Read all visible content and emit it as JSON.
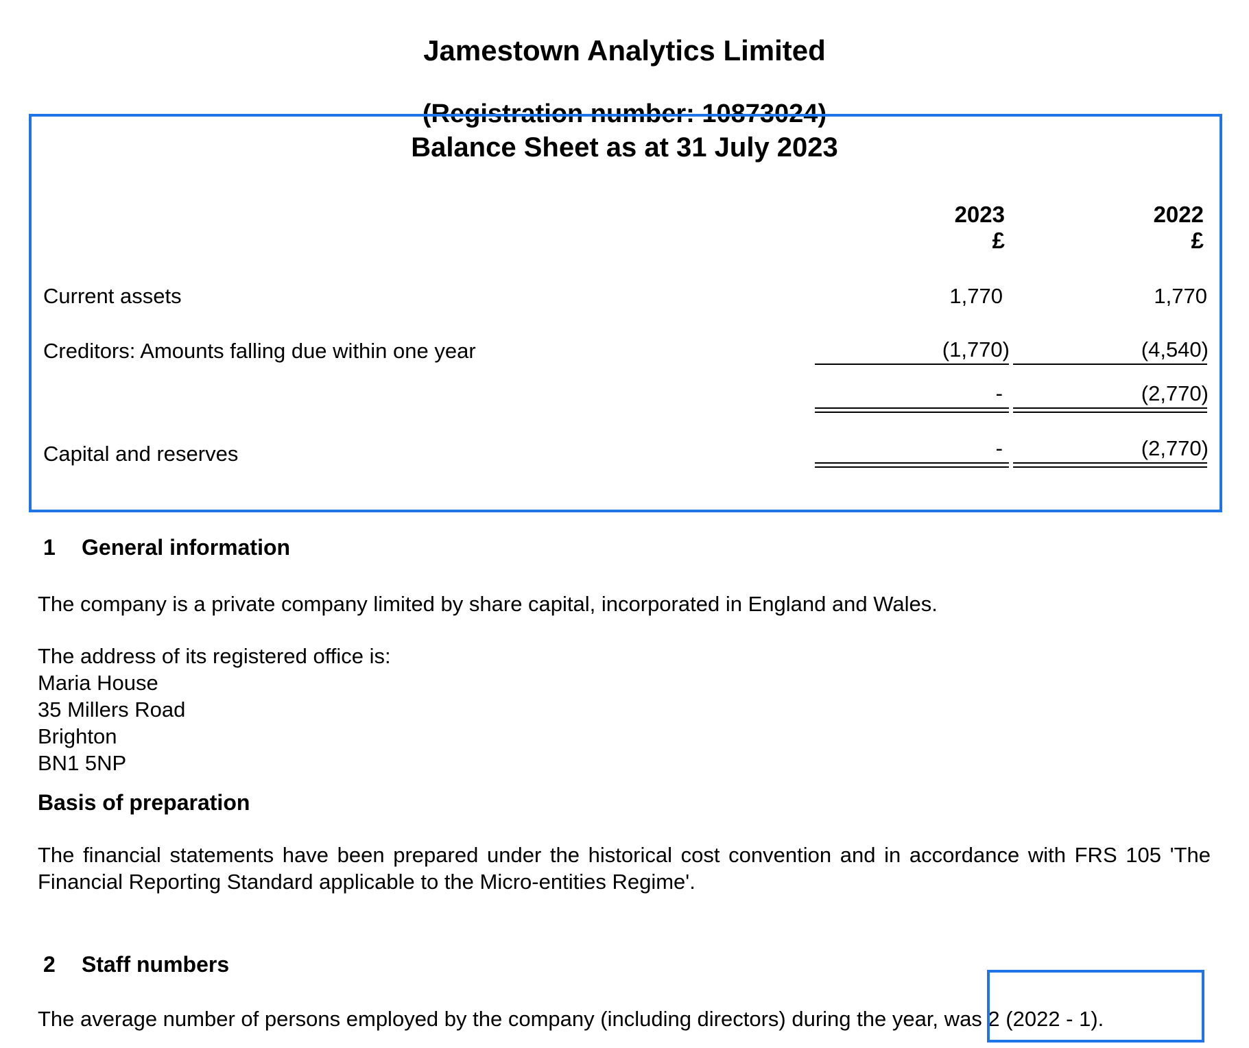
{
  "header": {
    "company": "Jamestown Analytics Limited",
    "registration": "(Registration number: 10873024)",
    "balance_sheet_title": "Balance Sheet as at 31 July 2023"
  },
  "balance_sheet": {
    "columns": [
      {
        "year": "2023",
        "currency": "£"
      },
      {
        "year": "2022",
        "currency": "£"
      }
    ],
    "rows": [
      {
        "label": "Current assets",
        "y2023": "1,770",
        "y2022": "1,770"
      },
      {
        "label": "Creditors: Amounts falling due within one year",
        "y2023": "(1,770)",
        "y2022": "(4,540)"
      },
      {
        "label": "",
        "y2023": "-",
        "y2022": "(2,770)"
      },
      {
        "label": "Capital and reserves",
        "y2023": "-",
        "y2022": "(2,770)"
      }
    ]
  },
  "section1": {
    "number": "1",
    "title": "General information",
    "intro": "The company is a private company limited by share capital, incorporated in England and Wales.",
    "address_heading": "The address of its registered office is:",
    "address_lines": [
      "Maria House",
      "35 Millers Road",
      "Brighton",
      "BN1 5NP"
    ],
    "basis_heading": "Basis of preparation",
    "basis_text": "The financial statements have been prepared under the historical cost convention and in accordance with FRS 105 'The Financial Reporting Standard applicable to the Micro-entities Regime'."
  },
  "section2": {
    "number": "2",
    "title": "Staff numbers",
    "text_before": "The average number of persons employed by the company (including directors) during the year,",
    "text_highlight": " was 2 (2022 - 1)."
  },
  "highlight_color": "#1f75e8"
}
